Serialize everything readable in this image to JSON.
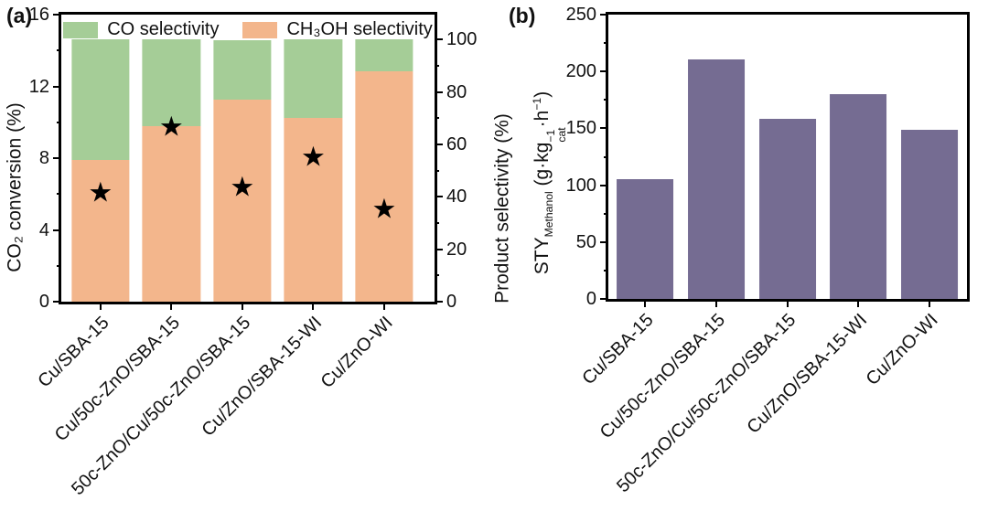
{
  "figure": {
    "panel_a_label": "(a)",
    "panel_b_label": "(b)"
  },
  "chart_data": [
    {
      "panel": "a",
      "type": "bar",
      "stacked": true,
      "grid": false,
      "legend_position": "top-inside",
      "categories": [
        "Cu/SBA-15",
        "Cu/50c-ZnO/SBA-15",
        "50c-ZnO/Cu/50c-ZnO/SBA-15",
        "Cu/ZnO/SBA-15-WI",
        "Cu/ZnO-WI"
      ],
      "series": [
        {
          "name": "CH₃OH selectivity",
          "axis": "right",
          "color": "#f3b68c",
          "values": [
            54,
            67,
            77,
            70,
            88
          ]
        },
        {
          "name": "CO selectivity",
          "axis": "right",
          "color": "#a5cd97",
          "values": [
            46,
            33,
            23,
            30,
            12
          ]
        }
      ],
      "scatter_series": {
        "name": "CO₂ conversion",
        "marker": "star",
        "color": "#000000",
        "axis": "left",
        "values": [
          6.0,
          9.7,
          6.3,
          8.0,
          5.1
        ]
      },
      "left_axis": {
        "label": "CO₂ conversion (%)",
        "range": [
          0,
          16
        ],
        "major_ticks": [
          0,
          4,
          8,
          12,
          16
        ],
        "minor_ticks": [
          2,
          6,
          10,
          14
        ]
      },
      "right_axis": {
        "label": "Product selectivity (%)",
        "range": [
          0,
          100
        ],
        "major_ticks": [
          0,
          20,
          40,
          60,
          80,
          100
        ],
        "minor_ticks": [
          10,
          30,
          50,
          70,
          90
        ]
      },
      "bar_top_in_left_units": 14.6
    },
    {
      "panel": "b",
      "type": "bar",
      "stacked": false,
      "grid": false,
      "categories": [
        "Cu/SBA-15",
        "Cu/50c-ZnO/SBA-15",
        "50c-ZnO/Cu/50c-ZnO/SBA-15",
        "Cu/ZnO/SBA-15-WI",
        "Cu/ZnO-WI"
      ],
      "values": [
        105,
        211,
        158,
        180,
        149
      ],
      "bar_color": "#756c92",
      "left_axis": {
        "label": "STY_Methanol (g·kg⁻¹cat·h⁻¹)",
        "label_parts": {
          "sty": "STY",
          "sty_sub": "Methanol",
          "unit_open": " (g·kg",
          "kg_sup": "−1",
          "kg_sub": "cat",
          "unit_mid": "·h",
          "h_sup": "−1",
          "unit_close": ")"
        },
        "range": [
          0,
          250
        ],
        "major_ticks": [
          0,
          50,
          100,
          150,
          200,
          250
        ],
        "minor_ticks": [
          25,
          75,
          125,
          175,
          225
        ]
      }
    }
  ]
}
